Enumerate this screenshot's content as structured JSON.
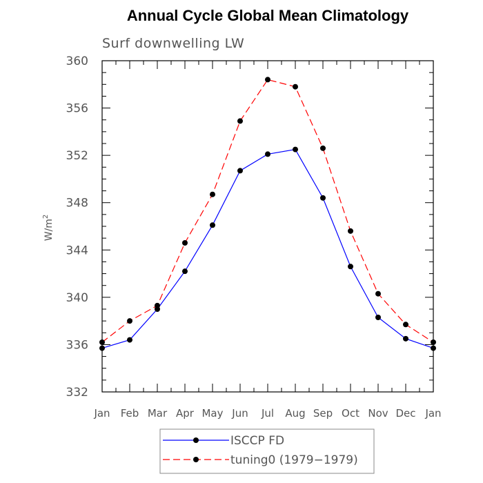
{
  "chart_data": {
    "type": "line",
    "title": "Annual Cycle Global Mean Climatology",
    "subtitle": "Surf downwelling LW",
    "ylabel_main": "W/m",
    "ylabel_sup": "2",
    "xlabel": "",
    "categories": [
      "Jan",
      "Feb",
      "Mar",
      "Apr",
      "May",
      "Jun",
      "Jul",
      "Aug",
      "Sep",
      "Oct",
      "Nov",
      "Dec",
      "Jan"
    ],
    "ylim": [
      332,
      360
    ],
    "yticks": [
      332,
      336,
      340,
      344,
      348,
      352,
      356,
      360
    ],
    "ytick_labels": [
      "332",
      "336",
      "340",
      "344",
      "348",
      "352",
      "356",
      "360"
    ],
    "grid": false,
    "legend_position": "bottom",
    "series": [
      {
        "name": "ISCCP FD",
        "color": "#0000ff",
        "dash": "solid",
        "values": [
          335.7,
          336.4,
          339.0,
          342.2,
          346.1,
          350.7,
          352.1,
          352.5,
          348.4,
          342.6,
          338.3,
          336.5,
          335.7
        ]
      },
      {
        "name": "tuning0 (1979−1979)",
        "color": "#ff0000",
        "dash": "dashed",
        "values": [
          336.2,
          338.0,
          339.3,
          344.6,
          348.7,
          354.9,
          358.4,
          357.8,
          352.6,
          345.6,
          340.3,
          337.7,
          336.2
        ]
      }
    ]
  }
}
